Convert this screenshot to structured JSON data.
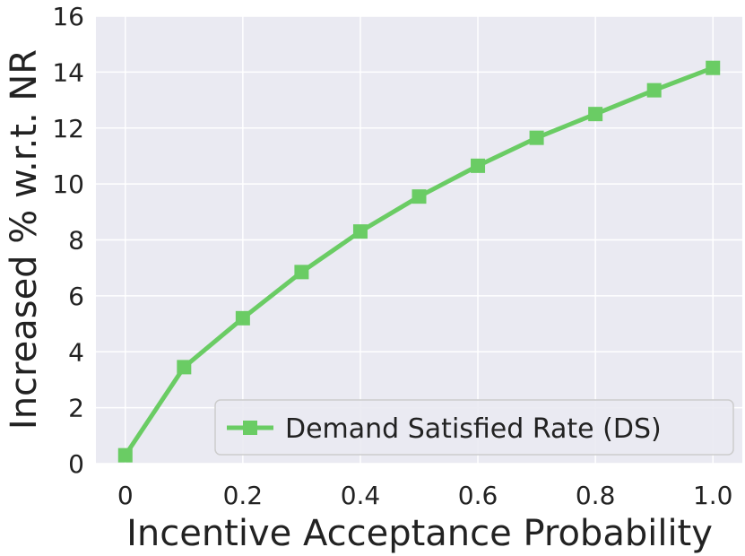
{
  "chart_data": {
    "type": "line",
    "title": "",
    "xlabel": "Incentive Acceptance Probability",
    "ylabel": "Increased % w.r.t. NR",
    "xlim": [
      -0.05,
      1.05
    ],
    "ylim": [
      0,
      16
    ],
    "xticks": [
      "0",
      "0.2",
      "0.4",
      "0.6",
      "0.8",
      "1.0"
    ],
    "yticks": [
      "0",
      "2",
      "4",
      "6",
      "8",
      "10",
      "12",
      "14",
      "16"
    ],
    "grid": true,
    "legend_position": "lower-right",
    "x": [
      0.0,
      0.1,
      0.2,
      0.3,
      0.4,
      0.5,
      0.6,
      0.7,
      0.8,
      0.9,
      1.0
    ],
    "series": [
      {
        "name": "Demand Satisfied Rate (DS)",
        "marker": "square",
        "color": "#6acc64",
        "values": [
          0.3,
          3.45,
          5.2,
          6.85,
          8.3,
          9.55,
          10.65,
          11.65,
          12.5,
          13.35,
          14.15
        ]
      }
    ]
  },
  "colors": {
    "plot_background": "#eaeaf2",
    "grid": "#ffffff",
    "series": "#6acc64"
  }
}
